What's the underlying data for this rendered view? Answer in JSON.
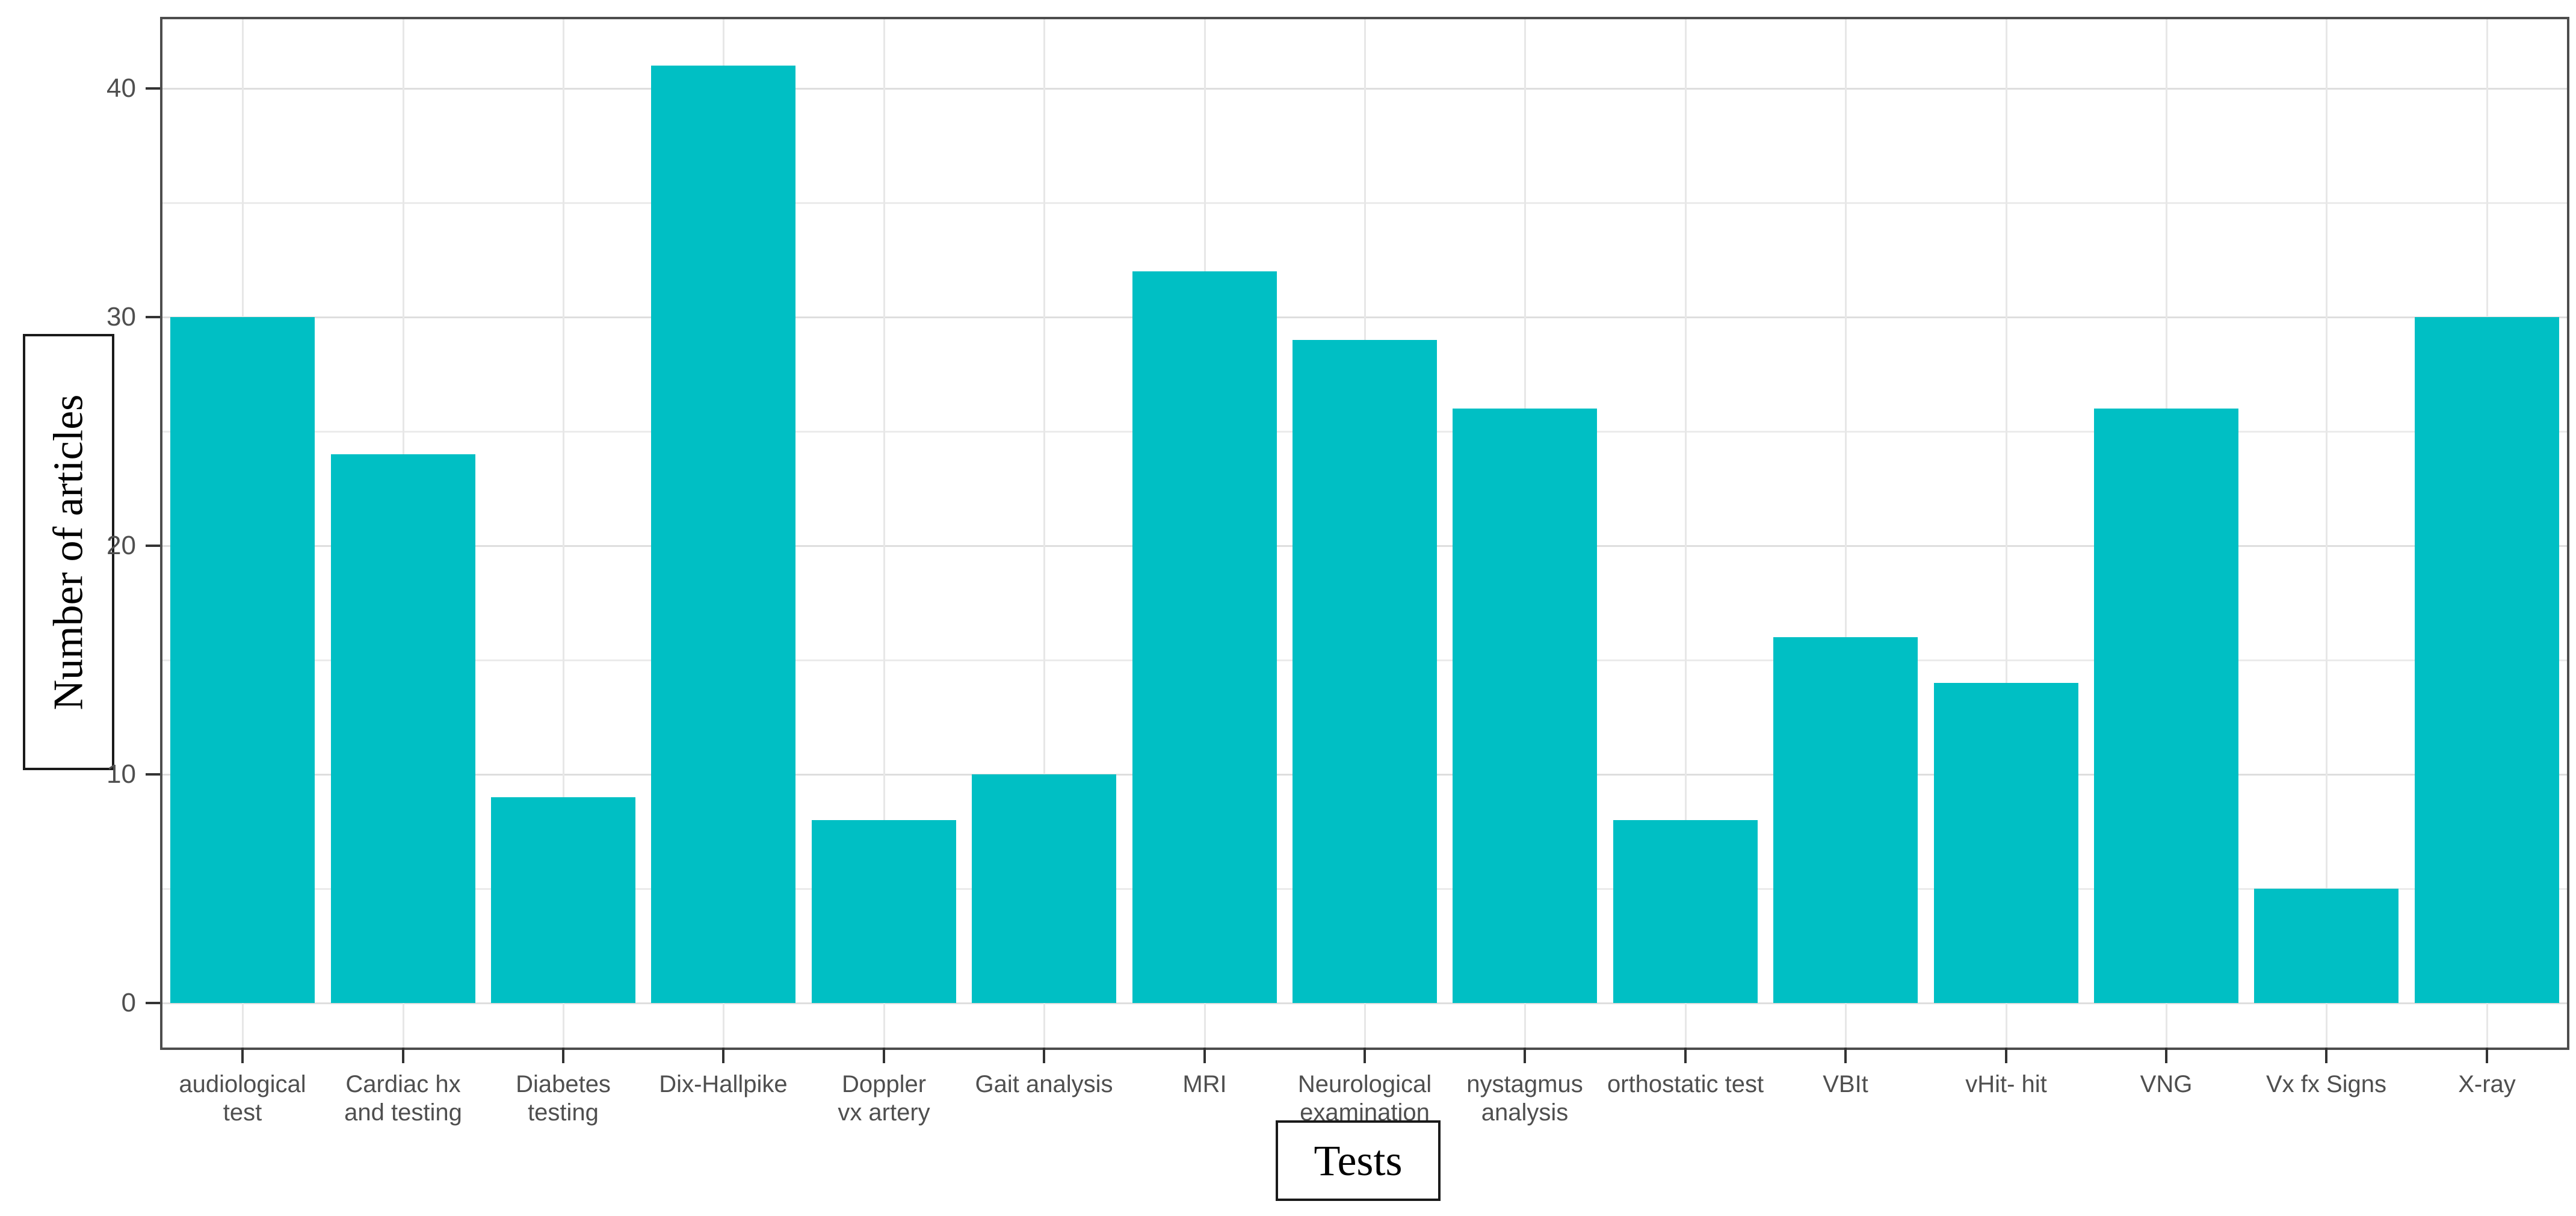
{
  "chart_data": {
    "type": "bar",
    "title": "",
    "xlabel": "Tests",
    "ylabel": "Number of articles",
    "categories": [
      "audiological\ntest",
      "Cardiac hx\nand testing",
      "Diabetes\ntesting",
      "Dix-Hallpike",
      "Doppler\nvx artery",
      "Gait analysis",
      "MRI",
      "Neurological\nexamination",
      "nystagmus\nanalysis",
      "orthostatic test",
      "VBIt",
      "vHit- hit",
      "VNG",
      "Vx fx Signs",
      "X-ray"
    ],
    "values": [
      30,
      24,
      9,
      41,
      8,
      10,
      32,
      29,
      26,
      8,
      16,
      14,
      26,
      5,
      30
    ],
    "ylim": [
      0,
      43
    ],
    "yticks": [
      0,
      10,
      20,
      30,
      40
    ],
    "minor_grid_step": 5,
    "grid": "on",
    "legend": "none",
    "bar_color": "#00bfc4"
  },
  "colors": {
    "bar_fill": "#00bfc4",
    "grid_major": "#dedede",
    "grid_minor": "#ebebeb",
    "panel_border": "#4d4d4d",
    "tick_text": "#4f4f4f",
    "axis_title_text": "#000000"
  }
}
